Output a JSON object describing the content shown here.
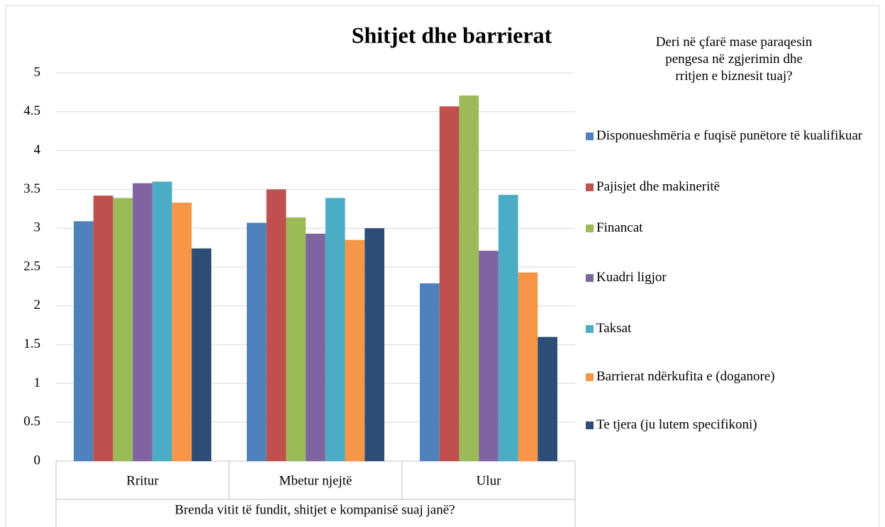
{
  "chart_data": {
    "type": "bar",
    "title": "Shitjet dhe barrierat",
    "x_label": "Brenda vitit të fundit, shitjet e kompanisë suaj janë?",
    "legend_title": "Deri në çfarë mase paraqesin pengesa në zgjerimin dhe rritjen e biznesit tuaj?",
    "categories": [
      "Rritur",
      "Mbetur njejtë",
      "Ulur"
    ],
    "series": [
      {
        "name": "Disponueshmëria e fuqisë punëtore të kualifikuar",
        "color": "#4f81bd",
        "values": [
          3.09,
          3.07,
          2.29
        ]
      },
      {
        "name": "Pajisjet dhe makineritë",
        "color": "#c0504d",
        "values": [
          3.42,
          3.5,
          4.57
        ]
      },
      {
        "name": "Financat",
        "color": "#9bbb59",
        "values": [
          3.39,
          3.14,
          4.71
        ]
      },
      {
        "name": "Kuadri ligjor",
        "color": "#8064a2",
        "values": [
          3.58,
          2.93,
          2.71
        ]
      },
      {
        "name": "Taksat",
        "color": "#4bacc6",
        "values": [
          3.6,
          3.39,
          3.43
        ]
      },
      {
        "name": "Barrierat ndërkufita e (doganore)",
        "color": "#f79646",
        "values": [
          3.33,
          2.85,
          2.43
        ]
      },
      {
        "name": "Te tjera (ju lutem specifikoni)",
        "color": "#2c4d75",
        "values": [
          2.74,
          3.0,
          1.6
        ]
      }
    ],
    "ylim": [
      0,
      5
    ],
    "yticks": [
      0,
      0.5,
      1,
      1.5,
      2,
      2.5,
      3,
      3.5,
      4,
      4.5,
      5
    ],
    "grid": true,
    "legend": "right"
  }
}
